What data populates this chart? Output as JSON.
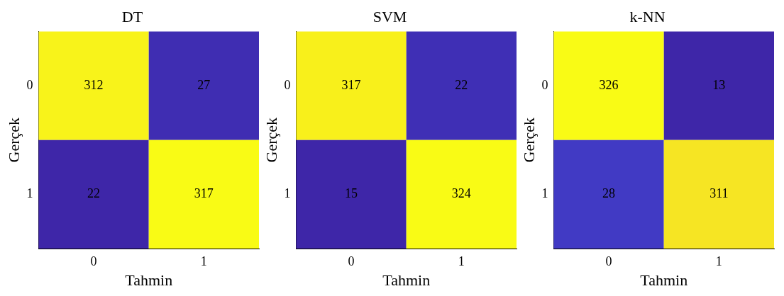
{
  "chart_data": [
    {
      "type": "heatmap",
      "title": "DT",
      "xlabel": "Tahmin",
      "ylabel": "Gerçek",
      "categories": [
        "0",
        "1"
      ],
      "y_categories": [
        "0",
        "1"
      ],
      "cells": [
        [
          312,
          27
        ],
        [
          22,
          317
        ]
      ],
      "data_labels": true
    },
    {
      "type": "heatmap",
      "title": "SVM",
      "xlabel": "Tahmin",
      "ylabel": "Gerçek",
      "categories": [
        "0",
        "1"
      ],
      "y_categories": [
        "0",
        "1"
      ],
      "cells": [
        [
          317,
          22
        ],
        [
          15,
          324
        ]
      ],
      "data_labels": true
    },
    {
      "type": "heatmap",
      "title": "k-NN",
      "xlabel": "Tahmin",
      "ylabel": "Gerçek",
      "categories": [
        "0",
        "1"
      ],
      "y_categories": [
        "0",
        "1"
      ],
      "cells": [
        [
          326,
          13
        ],
        [
          28,
          311
        ]
      ],
      "data_labels": true
    }
  ]
}
